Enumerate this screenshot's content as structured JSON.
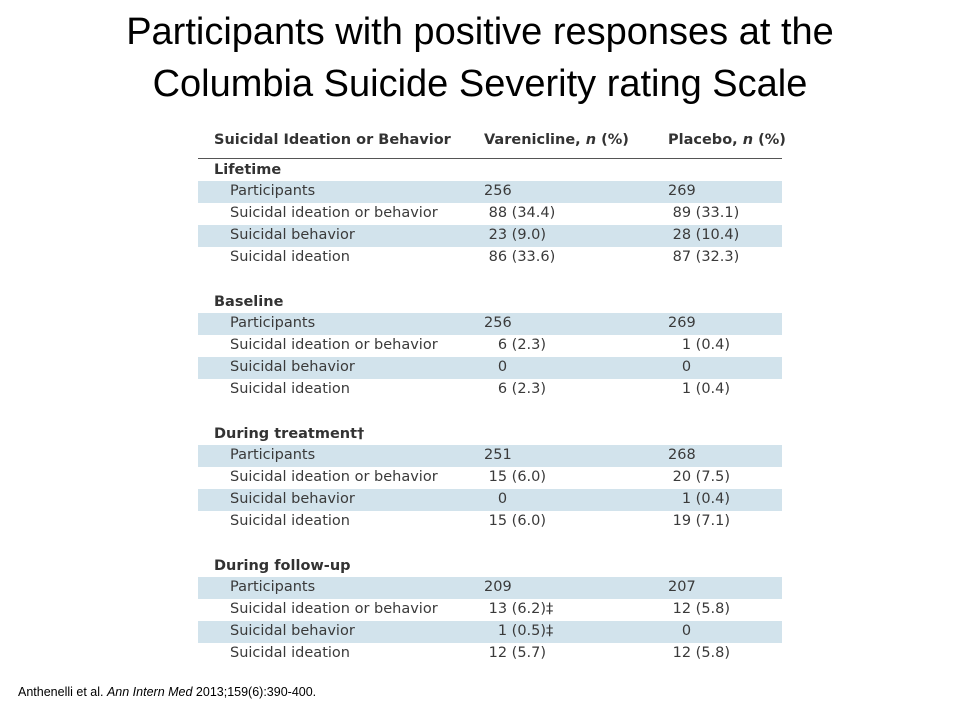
{
  "title": {
    "line1": "Participants with positive responses at the",
    "line2": "Columbia Suicide Severity rating Scale"
  },
  "table": {
    "headers": {
      "col1": "Suicidal Ideation or Behavior",
      "col2_main": "Varenicline,",
      "col2_italic": "n",
      "col2_unit": "(%)",
      "col3_main": "Placebo,",
      "col3_italic": "n",
      "col3_unit": "(%)"
    },
    "sections": [
      {
        "heading": "Lifetime",
        "rows": [
          {
            "label": "Participants",
            "varenicline": "256",
            "placebo": "269"
          },
          {
            "label": "Suicidal ideation or behavior",
            "varenicline": " 88 (34.4)",
            "placebo": " 89 (33.1)"
          },
          {
            "label": "Suicidal behavior",
            "varenicline": " 23 (9.0)",
            "placebo": " 28 (10.4)"
          },
          {
            "label": "Suicidal ideation",
            "varenicline": " 86 (33.6)",
            "placebo": " 87 (32.3)"
          }
        ]
      },
      {
        "heading": "Baseline",
        "rows": [
          {
            "label": "Participants",
            "varenicline": "256",
            "placebo": "269"
          },
          {
            "label": "Suicidal ideation or behavior",
            "varenicline": "   6 (2.3)",
            "placebo": "   1 (0.4)"
          },
          {
            "label": "Suicidal behavior",
            "varenicline": "   0",
            "placebo": "   0"
          },
          {
            "label": "Suicidal ideation",
            "varenicline": "   6 (2.3)",
            "placebo": "   1 (0.4)"
          }
        ]
      },
      {
        "heading": "During treatment†",
        "rows": [
          {
            "label": "Participants",
            "varenicline": "251",
            "placebo": "268"
          },
          {
            "label": "Suicidal ideation or behavior",
            "varenicline": " 15 (6.0)",
            "placebo": " 20 (7.5)"
          },
          {
            "label": "Suicidal behavior",
            "varenicline": "   0",
            "placebo": "   1 (0.4)"
          },
          {
            "label": "Suicidal ideation",
            "varenicline": " 15 (6.0)",
            "placebo": " 19 (7.1)"
          }
        ]
      },
      {
        "heading": "During follow-up",
        "rows": [
          {
            "label": "Participants",
            "varenicline": "209",
            "placebo": "207"
          },
          {
            "label": "Suicidal ideation or behavior",
            "varenicline": " 13 (6.2)‡",
            "placebo": " 12 (5.8)"
          },
          {
            "label": "Suicidal behavior",
            "varenicline": "   1 (0.5)‡",
            "placebo": "   0"
          },
          {
            "label": "Suicidal ideation",
            "varenicline": " 12 (5.7)",
            "placebo": " 12 (5.8)"
          }
        ]
      }
    ]
  },
  "citation": {
    "authors": "Anthenelli et al.",
    "journal": "Ann Intern Med",
    "details": "2013;159(6):390-400."
  }
}
